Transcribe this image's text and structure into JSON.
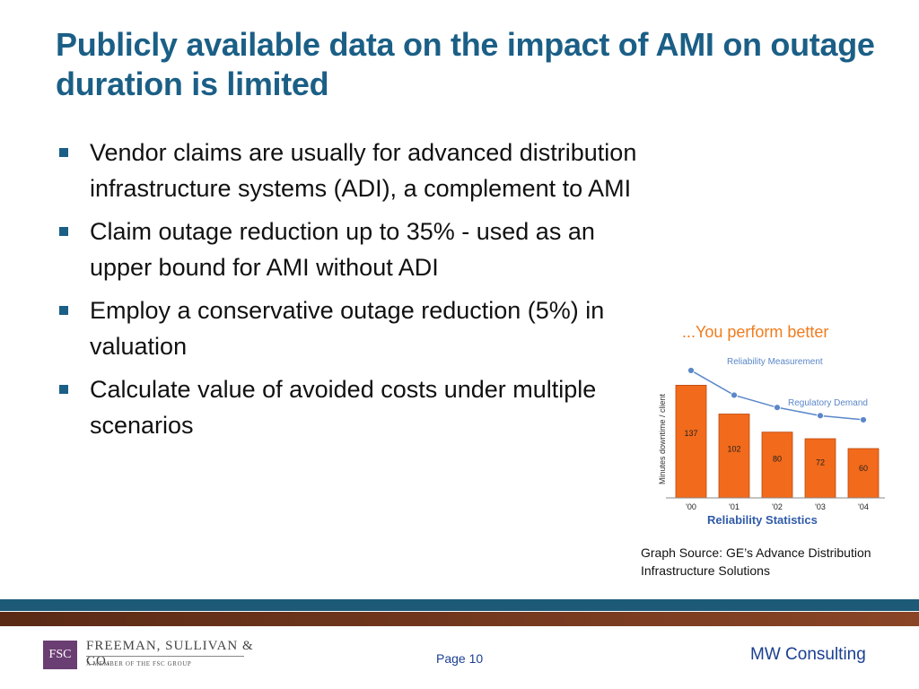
{
  "slide": {
    "title": "Publicly available data on the impact of AMI on outage duration is limited",
    "bullets": [
      "Vendor claims are usually for advanced distribution infrastructure systems (ADI), a complement to AMI",
      "Claim outage reduction up to 35% - used as an upper bound for AMI without ADI",
      "Employ a conservative outage reduction (5%) in valuation",
      "Calculate value of avoided costs under multiple scenarios"
    ],
    "caption": "Graph Source: GE’s Advance Distribution Infrastructure Solutions"
  },
  "chart_data": {
    "type": "bar",
    "title": "...You perform better",
    "subtitle": "Reliability Statistics",
    "ylabel": "Minutes downtime / client",
    "categories": [
      "'00",
      "'01",
      "'02",
      "'03",
      "'04"
    ],
    "series": [
      {
        "name": "",
        "values": [
          137,
          102,
          80,
          72,
          60
        ]
      }
    ],
    "line_series": [
      {
        "name": "Reliability Measurement",
        "values": [
          155,
          125,
          110,
          100,
          95
        ]
      }
    ],
    "annotation": "Regulatory Demand",
    "ylim": [
      0,
      180
    ],
    "bar_color": "#f26a1b",
    "line_color": "#5b87c9"
  },
  "footer": {
    "logo_abbr": "FSC",
    "logo_name": "FREEMAN, SULLIVAN & CO.",
    "logo_sub": "A MEMBER OF THE FSC GROUP",
    "page_label": "Page 10",
    "right_text": "MW Consulting"
  }
}
